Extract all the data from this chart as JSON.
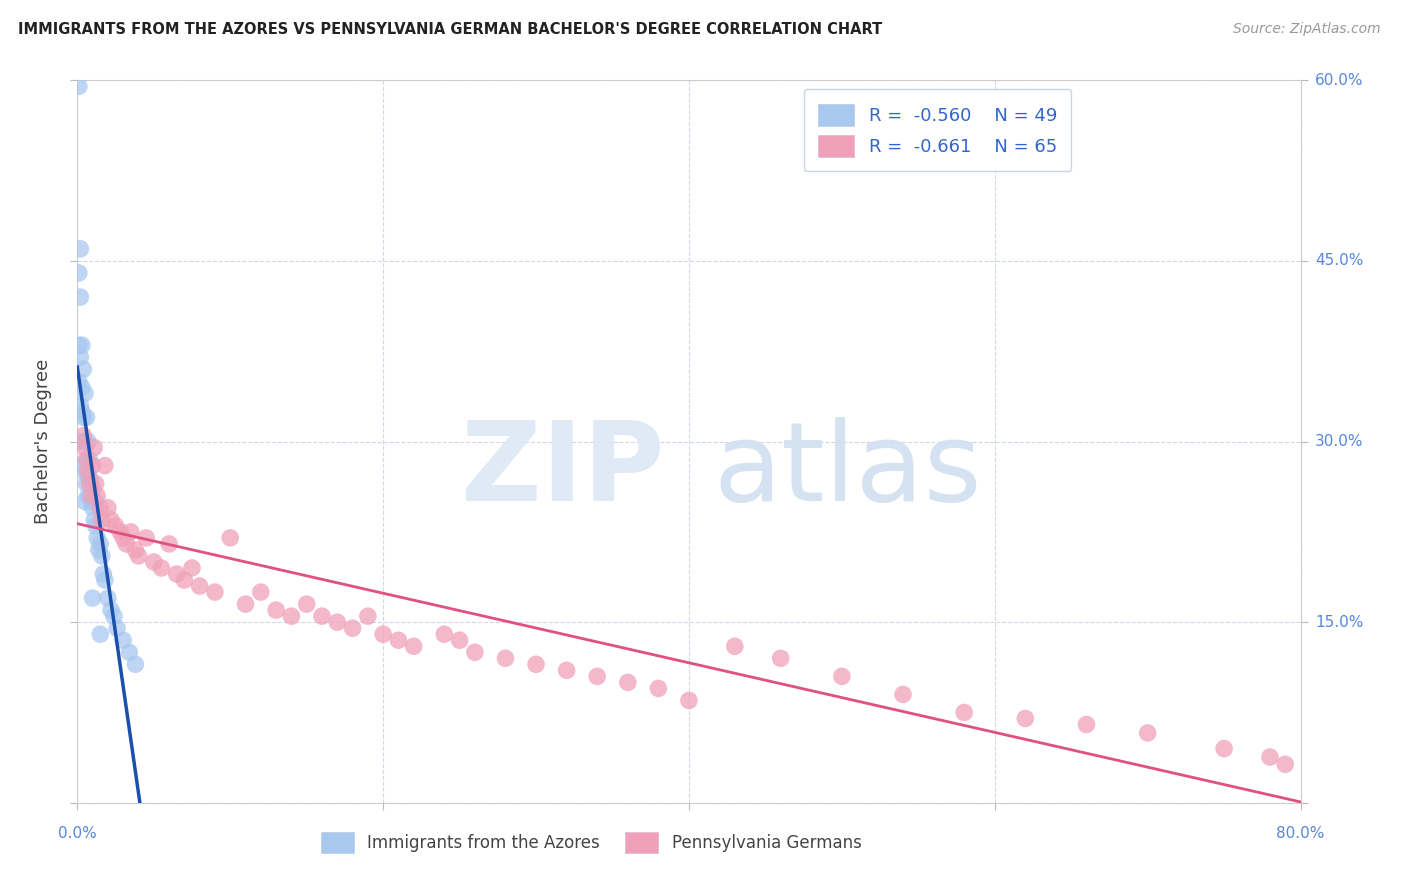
{
  "title": "IMMIGRANTS FROM THE AZORES VS PENNSYLVANIA GERMAN BACHELOR'S DEGREE CORRELATION CHART",
  "source": "Source: ZipAtlas.com",
  "ylabel": "Bachelor's Degree",
  "xlim": [
    0.0,
    0.8
  ],
  "ylim": [
    0.0,
    0.6
  ],
  "xticks": [
    0.0,
    0.2,
    0.4,
    0.6,
    0.8
  ],
  "yticks": [
    0.0,
    0.15,
    0.3,
    0.45,
    0.6
  ],
  "legend_r1": "R =  -0.560",
  "legend_n1": "N = 49",
  "legend_r2": "R =  -0.661",
  "legend_n2": "N = 65",
  "azores_color": "#a8c8f0",
  "pa_german_color": "#f0a0b8",
  "azores_line_color": "#1a4faa",
  "pa_german_line_color": "#e05080",
  "legend_text_color": "#3366cc",
  "grid_color": "#d0d8e8",
  "right_tick_color": "#5588dd",
  "bottom_legend_azores": "Immigrants from the Azores",
  "bottom_legend_pa": "Pennsylvania Germans",
  "azores_x": [
    0.001,
    0.001,
    0.001,
    0.001,
    0.002,
    0.002,
    0.002,
    0.002,
    0.003,
    0.003,
    0.003,
    0.004,
    0.004,
    0.004,
    0.005,
    0.005,
    0.005,
    0.006,
    0.006,
    0.006,
    0.007,
    0.007,
    0.007,
    0.008,
    0.008,
    0.009,
    0.009,
    0.01,
    0.01,
    0.011,
    0.012,
    0.012,
    0.013,
    0.014,
    0.015,
    0.016,
    0.017,
    0.018,
    0.02,
    0.022,
    0.024,
    0.026,
    0.03,
    0.034,
    0.038,
    0.003,
    0.005,
    0.01,
    0.015
  ],
  "azores_y": [
    0.595,
    0.44,
    0.38,
    0.35,
    0.46,
    0.42,
    0.37,
    0.33,
    0.38,
    0.345,
    0.325,
    0.36,
    0.32,
    0.28,
    0.34,
    0.3,
    0.275,
    0.32,
    0.285,
    0.265,
    0.3,
    0.27,
    0.255,
    0.285,
    0.27,
    0.265,
    0.25,
    0.26,
    0.245,
    0.235,
    0.25,
    0.23,
    0.22,
    0.21,
    0.215,
    0.205,
    0.19,
    0.185,
    0.17,
    0.16,
    0.155,
    0.145,
    0.135,
    0.125,
    0.115,
    0.3,
    0.25,
    0.17,
    0.14
  ],
  "pa_german_x": [
    0.004,
    0.005,
    0.006,
    0.007,
    0.008,
    0.009,
    0.01,
    0.011,
    0.012,
    0.013,
    0.015,
    0.016,
    0.018,
    0.02,
    0.022,
    0.025,
    0.028,
    0.03,
    0.032,
    0.035,
    0.038,
    0.04,
    0.045,
    0.05,
    0.055,
    0.06,
    0.065,
    0.07,
    0.075,
    0.08,
    0.09,
    0.1,
    0.11,
    0.12,
    0.13,
    0.14,
    0.15,
    0.16,
    0.17,
    0.18,
    0.19,
    0.2,
    0.21,
    0.22,
    0.24,
    0.25,
    0.26,
    0.28,
    0.3,
    0.32,
    0.34,
    0.36,
    0.38,
    0.4,
    0.43,
    0.46,
    0.5,
    0.54,
    0.58,
    0.62,
    0.66,
    0.7,
    0.75,
    0.78,
    0.79
  ],
  "pa_german_y": [
    0.305,
    0.295,
    0.285,
    0.275,
    0.265,
    0.255,
    0.28,
    0.295,
    0.265,
    0.255,
    0.245,
    0.235,
    0.28,
    0.245,
    0.235,
    0.23,
    0.225,
    0.22,
    0.215,
    0.225,
    0.21,
    0.205,
    0.22,
    0.2,
    0.195,
    0.215,
    0.19,
    0.185,
    0.195,
    0.18,
    0.175,
    0.22,
    0.165,
    0.175,
    0.16,
    0.155,
    0.165,
    0.155,
    0.15,
    0.145,
    0.155,
    0.14,
    0.135,
    0.13,
    0.14,
    0.135,
    0.125,
    0.12,
    0.115,
    0.11,
    0.105,
    0.1,
    0.095,
    0.085,
    0.13,
    0.12,
    0.105,
    0.09,
    0.075,
    0.07,
    0.065,
    0.058,
    0.045,
    0.038,
    0.032
  ]
}
